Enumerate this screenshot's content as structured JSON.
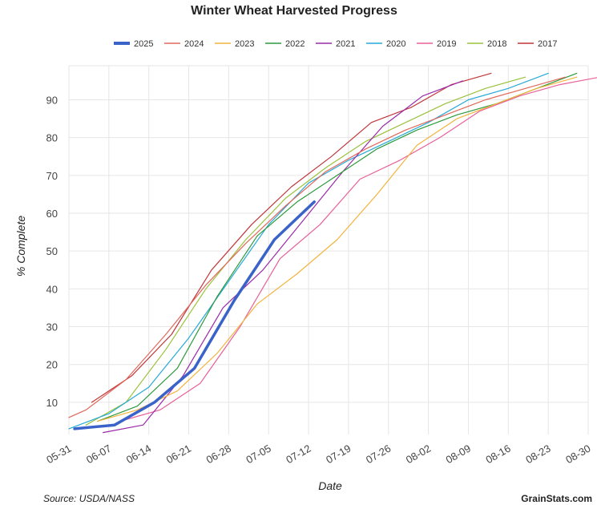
{
  "chart_data": {
    "type": "line",
    "title": "Winter Wheat Harvested Progress",
    "xlabel": "Date",
    "ylabel": "% Complete",
    "x_ticks": [
      "05-31",
      "06-07",
      "06-14",
      "06-21",
      "06-28",
      "07-05",
      "07-12",
      "07-19",
      "07-26",
      "08-02",
      "08-09",
      "08-16",
      "08-23",
      "08-30"
    ],
    "y_ticks": [
      10,
      20,
      30,
      40,
      50,
      60,
      70,
      80,
      90
    ],
    "xlim_days": [
      0,
      91
    ],
    "ylim": [
      1.5,
      99
    ],
    "grid": true,
    "legend_position": "top",
    "series": [
      {
        "name": "2025",
        "color": "#3a63c9",
        "width": 3.5,
        "points": [
          [
            "06-01",
            3
          ],
          [
            "06-08",
            4
          ],
          [
            "06-15",
            10
          ],
          [
            "06-22",
            19
          ],
          [
            "06-29",
            37
          ],
          [
            "07-06",
            53
          ],
          [
            "07-13",
            63
          ]
        ]
      },
      {
        "name": "2024",
        "color": "#e0685a",
        "width": 1.2,
        "points": [
          [
            "05-31",
            6
          ],
          [
            "06-03",
            8
          ],
          [
            "06-10",
            16
          ],
          [
            "06-17",
            28
          ],
          [
            "06-24",
            41
          ],
          [
            "07-01",
            52
          ],
          [
            "07-08",
            62
          ],
          [
            "07-15",
            71
          ],
          [
            "07-22",
            77
          ],
          [
            "07-29",
            82
          ],
          [
            "08-05",
            86
          ],
          [
            "08-12",
            90
          ],
          [
            "08-19",
            93
          ],
          [
            "08-26",
            96
          ]
        ]
      },
      {
        "name": "2023",
        "color": "#f3b33d",
        "width": 1.2,
        "points": [
          [
            "06-05",
            5
          ],
          [
            "06-12",
            8
          ],
          [
            "06-19",
            13
          ],
          [
            "06-26",
            23
          ],
          [
            "07-03",
            36
          ],
          [
            "07-10",
            44
          ],
          [
            "07-17",
            53
          ],
          [
            "07-24",
            65
          ],
          [
            "07-31",
            78
          ],
          [
            "08-07",
            85
          ],
          [
            "08-14",
            89
          ],
          [
            "08-21",
            93
          ],
          [
            "08-28",
            96
          ]
        ]
      },
      {
        "name": "2022",
        "color": "#2e9a3e",
        "width": 1.2,
        "points": [
          [
            "06-05",
            5
          ],
          [
            "06-12",
            9
          ],
          [
            "06-19",
            19
          ],
          [
            "06-26",
            38
          ],
          [
            "07-03",
            54
          ],
          [
            "07-10",
            63
          ],
          [
            "07-17",
            70
          ],
          [
            "07-24",
            77
          ],
          [
            "07-31",
            82
          ],
          [
            "08-07",
            86
          ],
          [
            "08-14",
            89
          ],
          [
            "08-21",
            93
          ],
          [
            "08-28",
            97
          ]
        ]
      },
      {
        "name": "2021",
        "color": "#9a2aa8",
        "width": 1.2,
        "points": [
          [
            "06-06",
            2
          ],
          [
            "06-13",
            4
          ],
          [
            "06-20",
            17
          ],
          [
            "06-27",
            35
          ],
          [
            "07-04",
            45
          ],
          [
            "07-11",
            58
          ],
          [
            "07-18",
            71
          ],
          [
            "07-25",
            83
          ],
          [
            "08-01",
            91
          ],
          [
            "08-08",
            95
          ]
        ]
      },
      {
        "name": "2020",
        "color": "#27a9d6",
        "width": 1.2,
        "points": [
          [
            "05-31",
            3
          ],
          [
            "06-07",
            7
          ],
          [
            "06-14",
            14
          ],
          [
            "06-21",
            27
          ],
          [
            "06-28",
            42
          ],
          [
            "07-05",
            57
          ],
          [
            "07-12",
            68
          ],
          [
            "07-19",
            74
          ],
          [
            "07-26",
            79
          ],
          [
            "08-02",
            84
          ],
          [
            "08-09",
            90
          ],
          [
            "08-16",
            93
          ],
          [
            "08-23",
            97
          ]
        ]
      },
      {
        "name": "2019",
        "color": "#e8609a",
        "width": 1.2,
        "points": [
          [
            "06-09",
            5
          ],
          [
            "06-16",
            8
          ],
          [
            "06-23",
            15
          ],
          [
            "06-30",
            30
          ],
          [
            "07-07",
            48
          ],
          [
            "07-14",
            57
          ],
          [
            "07-21",
            69
          ],
          [
            "07-28",
            74
          ],
          [
            "08-04",
            80
          ],
          [
            "08-11",
            87
          ],
          [
            "08-18",
            91
          ],
          [
            "08-25",
            94
          ],
          [
            "09-01",
            96
          ]
        ]
      },
      {
        "name": "2018",
        "color": "#9ac23c",
        "width": 1.2,
        "points": [
          [
            "06-03",
            4
          ],
          [
            "06-10",
            10
          ],
          [
            "06-17",
            24
          ],
          [
            "06-24",
            40
          ],
          [
            "07-01",
            53
          ],
          [
            "07-08",
            64
          ],
          [
            "07-15",
            72
          ],
          [
            "07-22",
            79
          ],
          [
            "07-29",
            84
          ],
          [
            "08-05",
            89
          ],
          [
            "08-12",
            93
          ],
          [
            "08-19",
            96
          ]
        ]
      },
      {
        "name": "2017",
        "color": "#c0363a",
        "width": 1.2,
        "points": [
          [
            "06-04",
            10
          ],
          [
            "06-11",
            17
          ],
          [
            "06-18",
            28
          ],
          [
            "06-25",
            45
          ],
          [
            "07-02",
            57
          ],
          [
            "07-09",
            67
          ],
          [
            "07-16",
            75
          ],
          [
            "07-23",
            84
          ],
          [
            "07-30",
            88
          ],
          [
            "08-06",
            94
          ],
          [
            "08-13",
            97
          ]
        ]
      }
    ]
  },
  "footer": {
    "source": "Source: USDA/NASS",
    "brand": "GrainStats.com"
  }
}
